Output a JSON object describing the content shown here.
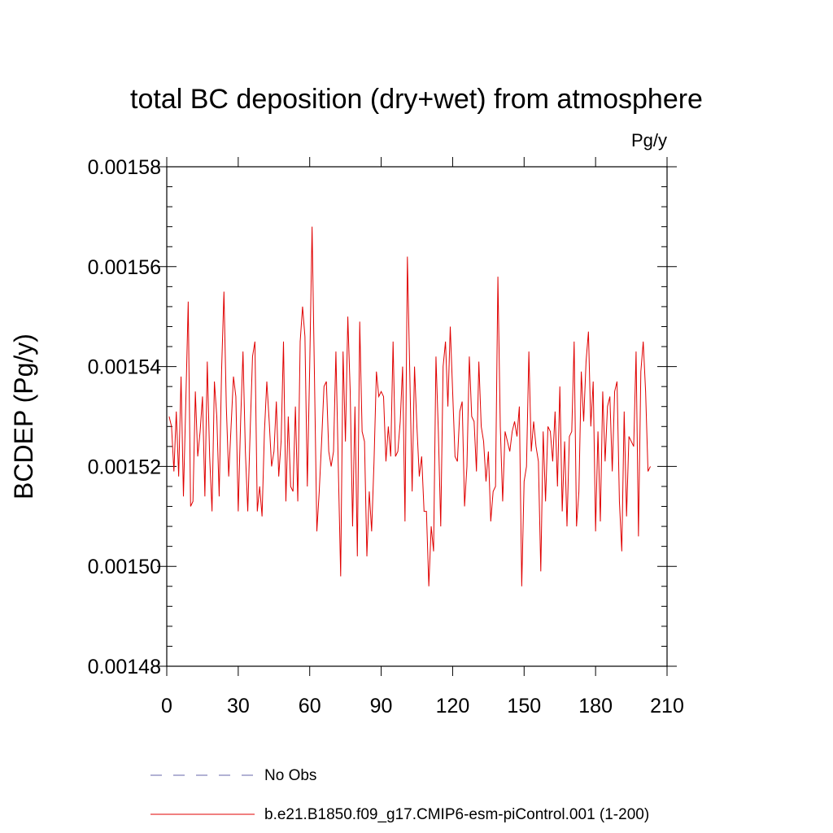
{
  "chart_data": {
    "type": "line",
    "title": "total BC deposition (dry+wet) from atmosphere",
    "units_label": "Pg/y",
    "ylabel": "BCDEP  (Pg/y)",
    "xlabel": "",
    "xlim": [
      0,
      210
    ],
    "ylim": [
      0.00148,
      0.00158
    ],
    "xticks": [
      0,
      30,
      60,
      90,
      120,
      150,
      180,
      210
    ],
    "xtick_labels": [
      "0",
      "30",
      "60",
      "90",
      "120",
      "150",
      "180",
      "210"
    ],
    "yticks": [
      0.00148,
      0.0015,
      0.00152,
      0.00154,
      0.00156,
      0.00158
    ],
    "ytick_labels": [
      "0.00148",
      "0.00150",
      "0.00152",
      "0.00154",
      "0.00156",
      "0.00158"
    ],
    "grid": false,
    "legend_position": "bottom",
    "legend": [
      {
        "label": "No Obs",
        "color": "#6666aa",
        "dash": "dashed"
      },
      {
        "label": "b.e21.B1850.f09_g17.CMIP6-esm-piControl.001 (1-200)",
        "color": "#e00000",
        "dash": "solid"
      }
    ],
    "series": [
      {
        "name": "b.e21.B1850.f09_g17.CMIP6-esm-piControl.001 (1-200)",
        "color": "#e00000",
        "x_start": 1,
        "x_step": 1,
        "values": [
          0.00153,
          0.001528,
          0.001519,
          0.001531,
          0.001518,
          0.001538,
          0.001514,
          0.001533,
          0.001553,
          0.001512,
          0.001513,
          0.001535,
          0.001522,
          0.001527,
          0.001534,
          0.001514,
          0.001541,
          0.001522,
          0.001511,
          0.001537,
          0.00153,
          0.001514,
          0.001539,
          0.001555,
          0.001532,
          0.001518,
          0.001528,
          0.001538,
          0.001534,
          0.001511,
          0.001529,
          0.001543,
          0.001523,
          0.001511,
          0.001527,
          0.001542,
          0.001545,
          0.001511,
          0.001516,
          0.00151,
          0.001527,
          0.001537,
          0.001529,
          0.00152,
          0.001523,
          0.001533,
          0.001518,
          0.001525,
          0.001545,
          0.001513,
          0.00153,
          0.001516,
          0.001515,
          0.001532,
          0.001513,
          0.001545,
          0.001552,
          0.001546,
          0.001516,
          0.00154,
          0.001568,
          0.001538,
          0.001507,
          0.001515,
          0.001525,
          0.001536,
          0.001537,
          0.001523,
          0.00152,
          0.001523,
          0.001543,
          0.00152,
          0.001498,
          0.001543,
          0.001525,
          0.00155,
          0.001535,
          0.001508,
          0.001532,
          0.001502,
          0.001549,
          0.001527,
          0.001525,
          0.001502,
          0.001515,
          0.001507,
          0.001521,
          0.001539,
          0.001534,
          0.001535,
          0.001534,
          0.001521,
          0.001528,
          0.001522,
          0.001545,
          0.001522,
          0.001523,
          0.001529,
          0.00154,
          0.001509,
          0.001562,
          0.001539,
          0.001515,
          0.00154,
          0.001528,
          0.001518,
          0.001522,
          0.001511,
          0.001511,
          0.001496,
          0.001508,
          0.001503,
          0.001542,
          0.001527,
          0.001508,
          0.00154,
          0.001545,
          0.001532,
          0.001548,
          0.001535,
          0.001522,
          0.001521,
          0.001531,
          0.001533,
          0.001512,
          0.00152,
          0.001542,
          0.00153,
          0.001529,
          0.001519,
          0.001541,
          0.001528,
          0.001525,
          0.001517,
          0.001523,
          0.001509,
          0.001515,
          0.001516,
          0.001558,
          0.001528,
          0.001513,
          0.001527,
          0.001525,
          0.001523,
          0.001527,
          0.001529,
          0.001526,
          0.001532,
          0.001496,
          0.001517,
          0.00152,
          0.001543,
          0.001523,
          0.001529,
          0.001524,
          0.001521,
          0.001499,
          0.001527,
          0.001513,
          0.001528,
          0.001527,
          0.001521,
          0.001531,
          0.001516,
          0.001536,
          0.001511,
          0.001525,
          0.001508,
          0.001526,
          0.001527,
          0.001545,
          0.001508,
          0.001515,
          0.001539,
          0.001529,
          0.001541,
          0.001547,
          0.001528,
          0.001537,
          0.001507,
          0.001527,
          0.001509,
          0.001535,
          0.001521,
          0.001532,
          0.001534,
          0.001519,
          0.001535,
          0.001537,
          0.001513,
          0.001503,
          0.001531,
          0.00151,
          0.001526,
          0.001525,
          0.001524,
          0.001543,
          0.001506,
          0.001539,
          0.001545,
          0.001535,
          0.001519,
          0.00152
        ]
      }
    ]
  }
}
